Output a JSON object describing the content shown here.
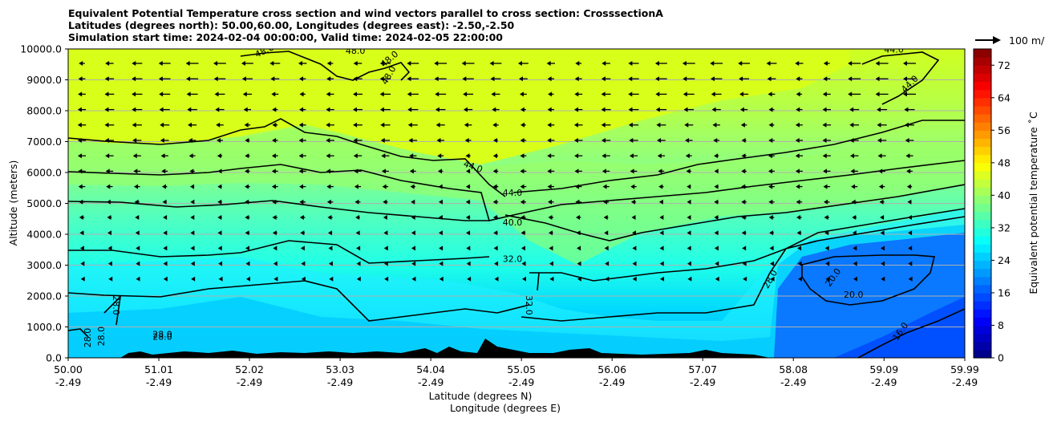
{
  "title_lines": [
    "Equivalent Potential Temperature cross section and wind vectors parallel to cross section: CrosssectionA",
    "Latitudes (degrees north): 50.00,60.00, Longitudes (degrees east): -2.50,-2.50",
    "Simulation start time: 2024-02-04 00:00:00, Valid time: 2024-02-05 22:00:00"
  ],
  "chart_data": {
    "type": "heatmap",
    "subtype": "filled contour cross section with wind vectors",
    "ylabel": "Altitude (meters)",
    "xlabel_line1": "Latitude (degrees N)",
    "xlabel_line2": "Longitude (degrees E)",
    "ylim": [
      0,
      10000
    ],
    "xlim": [
      50.0,
      59.99
    ],
    "y_ticks": [
      "0.0",
      "1000.0",
      "2000.0",
      "3000.0",
      "4000.0",
      "5000.0",
      "6000.0",
      "7000.0",
      "8000.0",
      "9000.0",
      "10000.0"
    ],
    "y_tick_values": [
      0,
      1000,
      2000,
      3000,
      4000,
      5000,
      6000,
      7000,
      8000,
      9000,
      10000
    ],
    "x_ticks_lat": [
      "50.00",
      "51.01",
      "52.02",
      "53.03",
      "54.04",
      "55.05",
      "56.06",
      "57.07",
      "58.08",
      "59.09",
      "59.99"
    ],
    "x_ticks_lon": [
      "-2.49",
      "-2.49",
      "-2.49",
      "-2.49",
      "-2.49",
      "-2.49",
      "-2.49",
      "-2.49",
      "-2.49",
      "-2.49",
      "-2.49"
    ],
    "x_tick_values": [
      50.0,
      51.01,
      52.02,
      53.03,
      54.04,
      55.05,
      56.06,
      57.07,
      58.08,
      59.09,
      59.99
    ],
    "grid": "horizontal lines",
    "colorbar": {
      "label": "Equivalent potential temperature ˚C",
      "min": 0,
      "max": 76,
      "ticks": [
        "0",
        "8",
        "16",
        "24",
        "32",
        "40",
        "48",
        "56",
        "64",
        "72"
      ],
      "tick_values": [
        0,
        8,
        16,
        24,
        32,
        40,
        48,
        56,
        64,
        72
      ],
      "colormap": "jet"
    },
    "quiver_key": "100 m/",
    "contour_labels": [
      {
        "text": "48.0",
        "x": 52.2,
        "y": 9850,
        "rot": -25
      },
      {
        "text": "48.0",
        "x": 53.2,
        "y": 9850,
        "rot": 0
      },
      {
        "text": "48.0",
        "x": 53.6,
        "y": 9600,
        "rot": -40
      },
      {
        "text": "48.0",
        "x": 53.6,
        "y": 9100,
        "rot": -60
      },
      {
        "text": "44.0",
        "x": 59.2,
        "y": 9880,
        "rot": 0
      },
      {
        "text": "44.0",
        "x": 59.4,
        "y": 8800,
        "rot": -45
      },
      {
        "text": "44.0",
        "x": 54.5,
        "y": 6100,
        "rot": 20
      },
      {
        "text": "44.0",
        "x": 54.95,
        "y": 5250,
        "rot": 0
      },
      {
        "text": "40.0",
        "x": 54.95,
        "y": 4280,
        "rot": 0
      },
      {
        "text": "32.0",
        "x": 54.95,
        "y": 3100,
        "rot": 0
      },
      {
        "text": "32.0",
        "x": 55.1,
        "y": 1700,
        "rot": 90
      },
      {
        "text": "28.0",
        "x": 50.5,
        "y": 1700,
        "rot": 90
      },
      {
        "text": "28.0",
        "x": 50.4,
        "y": 700,
        "rot": -90
      },
      {
        "text": "28.0",
        "x": 50.25,
        "y": 650,
        "rot": -90
      },
      {
        "text": "28.0",
        "x": 51.05,
        "y": 660,
        "rot": 0
      },
      {
        "text": "28.0",
        "x": 51.05,
        "y": 580,
        "rot": 0
      },
      {
        "text": "28.0",
        "x": 57.85,
        "y": 2500,
        "rot": -60
      },
      {
        "text": "20.0",
        "x": 58.55,
        "y": 2550,
        "rot": -55
      },
      {
        "text": "20.0",
        "x": 58.75,
        "y": 1950,
        "rot": 0
      },
      {
        "text": "16.0",
        "x": 59.3,
        "y": 800,
        "rot": -55
      }
    ]
  }
}
